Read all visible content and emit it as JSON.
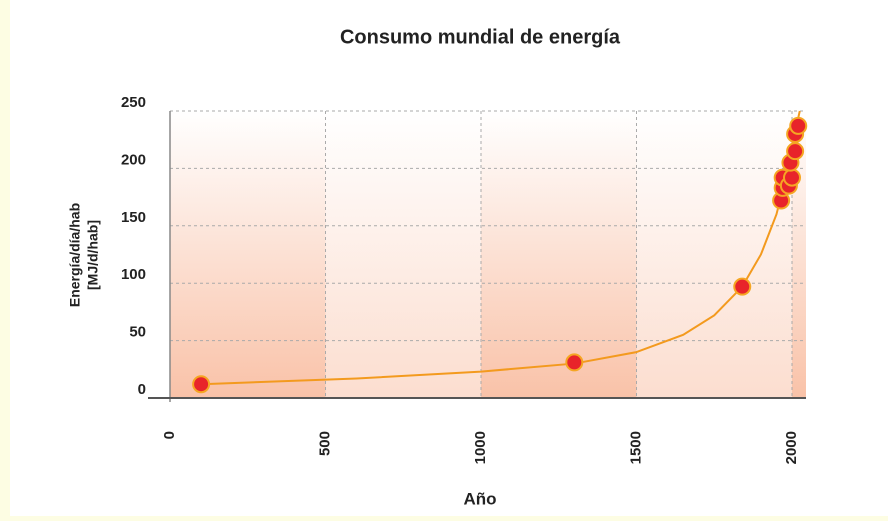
{
  "chart_data": {
    "type": "scatter",
    "title": "Consumo mundial de energía",
    "xlabel": "Año",
    "ylabel": [
      "Energía/día/hab",
      "[MJ/d/hab]"
    ],
    "xlim": [
      0,
      2045
    ],
    "xticks": [
      0,
      500,
      1000,
      1500,
      2000
    ],
    "ylim": [
      0,
      250
    ],
    "yticks": [
      0,
      50,
      100,
      150,
      200,
      250
    ],
    "grid": true,
    "series": [
      {
        "type": "line",
        "color": "#f39a1e",
        "x": [
          100,
          600,
          1000,
          1300,
          1500,
          1650,
          1750,
          1840,
          1900,
          1950,
          1980,
          2010,
          2025
        ],
        "values": [
          12,
          17,
          23,
          30,
          40,
          55,
          72,
          97,
          125,
          160,
          192,
          232,
          250
        ]
      },
      {
        "type": "scatter",
        "color": "#e8242a",
        "x": [
          100,
          1300,
          1840,
          1965,
          1970,
          1970,
          1990,
          2000,
          1995,
          2010,
          2010,
          2020
        ],
        "values": [
          12,
          31,
          97,
          172,
          183,
          192,
          185,
          192,
          205,
          215,
          230,
          237
        ]
      }
    ]
  }
}
